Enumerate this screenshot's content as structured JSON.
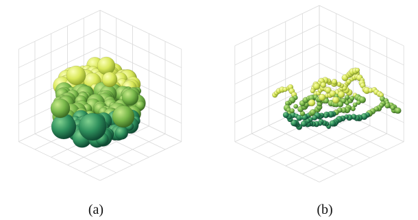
{
  "panels": [
    {
      "caption": "(a)"
    },
    {
      "caption": "(b)"
    }
  ],
  "colors": {
    "grid": "#d9d9d9",
    "sphere_dark": "#1f7d56",
    "sphere_mid": "#6fb64a",
    "sphere_light": "#e6ef5a",
    "highlight": "#fbff9c"
  }
}
